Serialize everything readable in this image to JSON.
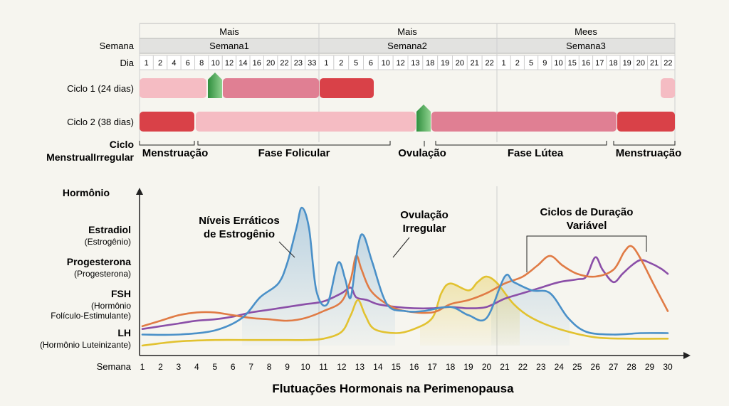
{
  "timeline": {
    "groups": [
      "Mais",
      "Mais",
      "Mees"
    ],
    "weeks": [
      "Semana1",
      "Semana2",
      "Semana3"
    ],
    "row_labels": {
      "semana": "Semana",
      "dia": "Dia"
    },
    "days": [
      [
        "1",
        "2",
        "4",
        "6",
        "8",
        "10",
        "12",
        "14",
        "16",
        "20",
        "22",
        "23",
        "33"
      ],
      [
        "1",
        "2",
        "5",
        "6",
        "10",
        "12",
        "13",
        "18",
        "19",
        "20",
        "21",
        "22"
      ],
      [
        "1",
        "2",
        "5",
        "9",
        "10",
        "15",
        "16",
        "17",
        "18",
        "19",
        "20",
        "21",
        "22"
      ]
    ],
    "cycles": [
      {
        "label": "Ciclo 1 (24 dias)"
      },
      {
        "label": "Ciclo 2 (38 dias)"
      }
    ],
    "irregular_label_line1": "Ciclo",
    "irregular_label_line2": "MenstrualIrregular",
    "phases": [
      "Menstruação",
      "Fase Folicular",
      "Ovulação",
      "Fase Lútea",
      "Menstruação"
    ]
  },
  "chart_data": {
    "type": "line",
    "title": "Flutuações Hormonais na Perimenopausa",
    "xlabel": "Semana",
    "ylabel": "Hormônio",
    "xlim": [
      1,
      30
    ],
    "x_ticks": [
      1,
      2,
      3,
      4,
      5,
      6,
      7,
      8,
      9,
      10,
      11,
      12,
      13,
      14,
      15,
      16,
      17,
      18,
      19,
      20,
      21,
      22,
      23,
      24,
      25,
      26,
      27,
      28,
      29,
      30
    ],
    "y_labels": [
      {
        "name": "Estradiol",
        "sub": [
          "(Estrogênio)"
        ]
      },
      {
        "name": "Progesterona",
        "sub": [
          "(Progesterona)"
        ]
      },
      {
        "name": "FSH",
        "sub": [
          "(Hormônio",
          "Folículo-Estimulante)"
        ]
      },
      {
        "name": "LH",
        "sub": [
          "(Hormônio Luteinizante)"
        ]
      }
    ],
    "annotations": [
      {
        "lines": [
          "Níveis Erráticos",
          "de Estrogênio"
        ]
      },
      {
        "lines": [
          "Ovulação",
          "Irregular"
        ]
      },
      {
        "lines": [
          "Ciclos de Duração",
          "Variável"
        ]
      }
    ],
    "grid": false,
    "series": [
      {
        "key": "estradiol",
        "color": "#4a90c8",
        "points": [
          [
            1,
            0.08
          ],
          [
            3,
            0.08
          ],
          [
            5,
            0.11
          ],
          [
            6.5,
            0.2
          ],
          [
            7.5,
            0.35
          ],
          [
            8.5,
            0.45
          ],
          [
            9,
            0.6
          ],
          [
            9.5,
            0.85
          ],
          [
            9.8,
            1.0
          ],
          [
            10.2,
            0.85
          ],
          [
            10.6,
            0.4
          ],
          [
            11.2,
            0.3
          ],
          [
            11.8,
            0.6
          ],
          [
            12.2,
            0.48
          ],
          [
            12.5,
            0.35
          ],
          [
            12.9,
            0.72
          ],
          [
            13.2,
            0.8
          ],
          [
            13.7,
            0.6
          ],
          [
            14.5,
            0.3
          ],
          [
            15.5,
            0.25
          ],
          [
            16.5,
            0.25
          ],
          [
            18,
            0.28
          ],
          [
            19,
            0.22
          ],
          [
            20,
            0.2
          ],
          [
            21,
            0.5
          ],
          [
            21.5,
            0.46
          ],
          [
            22.5,
            0.4
          ],
          [
            23.5,
            0.38
          ],
          [
            24.5,
            0.2
          ],
          [
            25.5,
            0.1
          ],
          [
            27,
            0.08
          ],
          [
            28.5,
            0.09
          ],
          [
            30,
            0.09
          ]
        ]
      },
      {
        "key": "progesterona",
        "color": "#e07b45",
        "points": [
          [
            1,
            0.14
          ],
          [
            2,
            0.18
          ],
          [
            3,
            0.22
          ],
          [
            4,
            0.24
          ],
          [
            5,
            0.24
          ],
          [
            6,
            0.22
          ],
          [
            7,
            0.2
          ],
          [
            8,
            0.19
          ],
          [
            9,
            0.18
          ],
          [
            10,
            0.2
          ],
          [
            11,
            0.25
          ],
          [
            12,
            0.32
          ],
          [
            12.5,
            0.48
          ],
          [
            12.8,
            0.65
          ],
          [
            13.1,
            0.55
          ],
          [
            13.6,
            0.4
          ],
          [
            14.5,
            0.3
          ],
          [
            15.5,
            0.25
          ],
          [
            17,
            0.24
          ],
          [
            18,
            0.3
          ],
          [
            19,
            0.33
          ],
          [
            20,
            0.38
          ],
          [
            21,
            0.45
          ],
          [
            22,
            0.5
          ],
          [
            22.8,
            0.58
          ],
          [
            23.5,
            0.65
          ],
          [
            24.2,
            0.58
          ],
          [
            25,
            0.52
          ],
          [
            26,
            0.5
          ],
          [
            27,
            0.55
          ],
          [
            27.6,
            0.68
          ],
          [
            28,
            0.72
          ],
          [
            28.5,
            0.63
          ],
          [
            29.2,
            0.45
          ],
          [
            30,
            0.25
          ]
        ]
      },
      {
        "key": "fsh",
        "color": "#8b4fa8",
        "points": [
          [
            1,
            0.12
          ],
          [
            2,
            0.14
          ],
          [
            3,
            0.16
          ],
          [
            4,
            0.18
          ],
          [
            5,
            0.19
          ],
          [
            6,
            0.21
          ],
          [
            7,
            0.24
          ],
          [
            8,
            0.26
          ],
          [
            9,
            0.28
          ],
          [
            10,
            0.3
          ],
          [
            11,
            0.32
          ],
          [
            12,
            0.38
          ],
          [
            12.5,
            0.42
          ],
          [
            12.8,
            0.35
          ],
          [
            13.4,
            0.33
          ],
          [
            14,
            0.3
          ],
          [
            15,
            0.28
          ],
          [
            16,
            0.27
          ],
          [
            17,
            0.27
          ],
          [
            18,
            0.28
          ],
          [
            19,
            0.27
          ],
          [
            20,
            0.28
          ],
          [
            21,
            0.34
          ],
          [
            22,
            0.38
          ],
          [
            23,
            0.42
          ],
          [
            24,
            0.46
          ],
          [
            25,
            0.48
          ],
          [
            25.5,
            0.5
          ],
          [
            26,
            0.64
          ],
          [
            26.4,
            0.55
          ],
          [
            27,
            0.46
          ],
          [
            27.5,
            0.52
          ],
          [
            28,
            0.58
          ],
          [
            28.5,
            0.62
          ],
          [
            29,
            0.6
          ],
          [
            29.6,
            0.56
          ],
          [
            30,
            0.52
          ]
        ]
      },
      {
        "key": "lh",
        "color": "#e2c230",
        "points": [
          [
            1,
            0.0
          ],
          [
            3,
            0.03
          ],
          [
            5,
            0.04
          ],
          [
            7,
            0.04
          ],
          [
            9,
            0.04
          ],
          [
            10,
            0.04
          ],
          [
            11,
            0.05
          ],
          [
            12,
            0.1
          ],
          [
            12.5,
            0.22
          ],
          [
            12.9,
            0.33
          ],
          [
            13.3,
            0.22
          ],
          [
            13.8,
            0.12
          ],
          [
            15,
            0.09
          ],
          [
            16,
            0.12
          ],
          [
            17,
            0.2
          ],
          [
            17.5,
            0.38
          ],
          [
            18,
            0.45
          ],
          [
            19,
            0.4
          ],
          [
            19.5,
            0.46
          ],
          [
            20,
            0.5
          ],
          [
            20.6,
            0.45
          ],
          [
            21.5,
            0.3
          ],
          [
            22.5,
            0.2
          ],
          [
            24,
            0.12
          ],
          [
            26,
            0.06
          ],
          [
            28,
            0.05
          ],
          [
            30,
            0.05
          ]
        ]
      }
    ]
  }
}
